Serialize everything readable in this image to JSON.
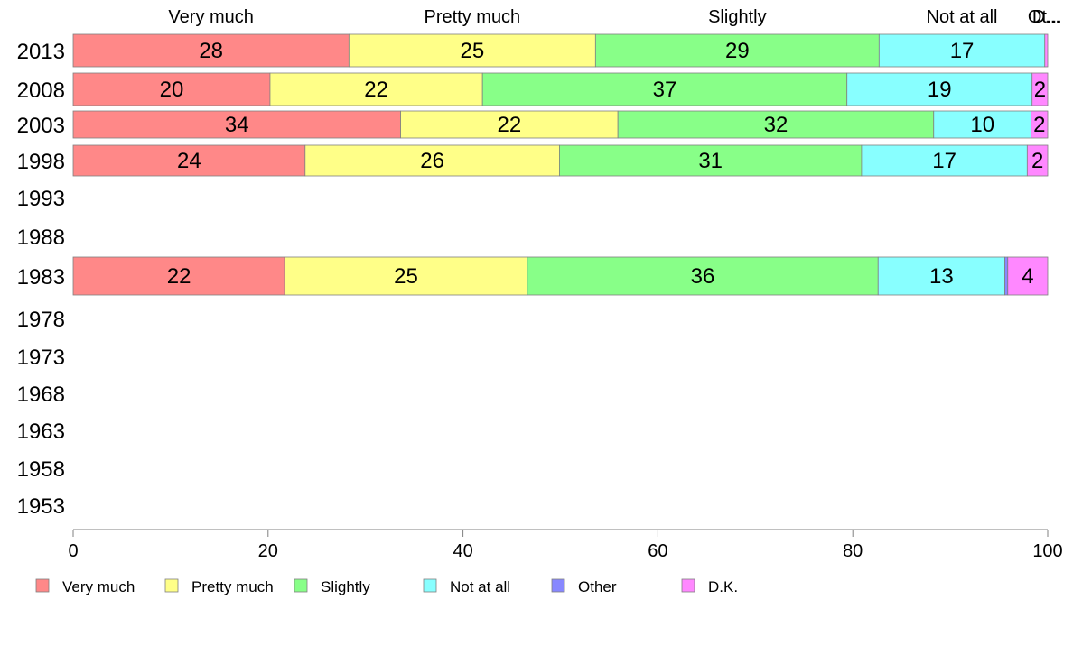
{
  "chart_data": {
    "type": "bar",
    "orientation": "horizontal",
    "stacked": true,
    "categories": [
      "2013",
      "2008",
      "2003",
      "1998",
      "1993",
      "1988",
      "1983",
      "1978",
      "1973",
      "1968",
      "1963",
      "1958",
      "1953"
    ],
    "column_labels": [
      "Very much",
      "Pretty much",
      "Slightly",
      "Not at all",
      "Ot...",
      "D..."
    ],
    "series": [
      {
        "name": "Very much",
        "color": "#ff8888",
        "values": [
          28.3,
          20.2,
          33.6,
          23.8,
          null,
          null,
          21.7,
          null,
          null,
          null,
          null,
          null,
          null
        ]
      },
      {
        "name": "Pretty much",
        "color": "#ffff88",
        "values": [
          25.3,
          21.8,
          22.3,
          26.1,
          null,
          null,
          24.9,
          null,
          null,
          null,
          null,
          null,
          null
        ]
      },
      {
        "name": "Slightly",
        "color": "#88ff88",
        "values": [
          29.1,
          37.4,
          32.4,
          31.0,
          null,
          null,
          36.0,
          null,
          null,
          null,
          null,
          null,
          null
        ]
      },
      {
        "name": "Not at all",
        "color": "#88ffff",
        "values": [
          17.0,
          19.0,
          10.0,
          17.0,
          null,
          null,
          13.0,
          null,
          null,
          null,
          null,
          null,
          null
        ]
      },
      {
        "name": "Other",
        "color": "#8888ff",
        "values": [
          0,
          0,
          0,
          0,
          null,
          null,
          0.3,
          null,
          null,
          null,
          null,
          null,
          null
        ]
      },
      {
        "name": "D.K.",
        "color": "#ff88ff",
        "values": [
          0.3,
          1.6,
          1.7,
          2.1,
          null,
          null,
          4.1,
          null,
          null,
          null,
          null,
          null,
          null
        ]
      }
    ],
    "value_labels": [
      [
        "28",
        "25",
        "29",
        "17",
        "",
        ""
      ],
      [
        "20",
        "22",
        "37",
        "19",
        "",
        "2"
      ],
      [
        "34",
        "22",
        "32",
        "10",
        "",
        "2"
      ],
      [
        "24",
        "26",
        "31",
        "17",
        "",
        "2"
      ],
      [],
      [],
      [
        "22",
        "25",
        "36",
        "13",
        "",
        "4"
      ],
      [],
      [],
      [],
      [],
      [],
      []
    ],
    "xlim": [
      0,
      100
    ],
    "xticks": [
      "0",
      "20",
      "40",
      "60",
      "80",
      "100"
    ],
    "legend_position": "bottom"
  }
}
